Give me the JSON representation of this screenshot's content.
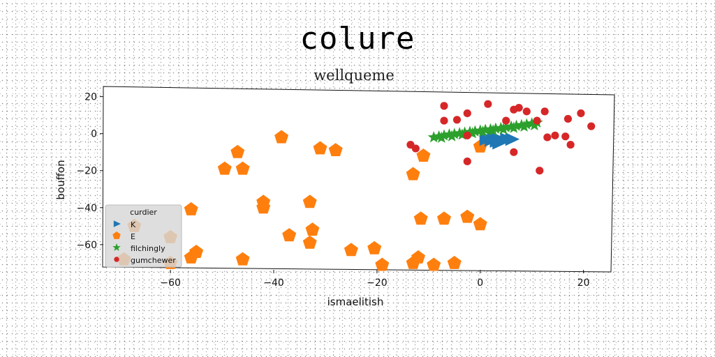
{
  "chart_data": {
    "type": "scatter",
    "title": "colure",
    "subtitle": "wellqueme",
    "xlabel": "ismaelitish",
    "ylabel": "bouffon",
    "xlim": [
      -73,
      26
    ],
    "ylim": [
      -74,
      24
    ],
    "xticks": [
      -60,
      -40,
      -20,
      0,
      20
    ],
    "yticks": [
      20,
      0,
      -20,
      -40,
      -60
    ],
    "grid": false,
    "legend": {
      "title": "curdier",
      "position": "lower-left"
    },
    "series": [
      {
        "name": "K",
        "marker": "triangle-right",
        "color": "#1f77b4",
        "points": [
          [
            1,
            -3
          ],
          [
            2,
            -3.5
          ],
          [
            3,
            -4
          ],
          [
            4,
            -3.5
          ],
          [
            5,
            -3
          ],
          [
            6,
            -3
          ],
          [
            2.5,
            -2
          ],
          [
            3.5,
            -5
          ]
        ]
      },
      {
        "name": "E",
        "marker": "pentagon",
        "color": "#ff7f0e",
        "points": [
          [
            -38.5,
            -2
          ],
          [
            -31,
            -8
          ],
          [
            -28,
            -9
          ],
          [
            -47,
            -10
          ],
          [
            -49.5,
            -19
          ],
          [
            -46,
            -19
          ],
          [
            -42,
            -37
          ],
          [
            -42,
            -40
          ],
          [
            -33,
            -37
          ],
          [
            -56,
            -41
          ],
          [
            -37,
            -55
          ],
          [
            -32.5,
            -52
          ],
          [
            -33,
            -59
          ],
          [
            -67,
            -50
          ],
          [
            -60,
            -56
          ],
          [
            -55,
            -64
          ],
          [
            -56,
            -67
          ],
          [
            -46,
            -68
          ],
          [
            -25,
            -63
          ],
          [
            -20.5,
            -62
          ],
          [
            -19,
            -71
          ],
          [
            -13,
            -70
          ],
          [
            -12,
            -67
          ],
          [
            -9,
            -71
          ],
          [
            -5,
            -70
          ],
          [
            -13,
            -22
          ],
          [
            -11,
            -12
          ],
          [
            -11.5,
            -46
          ],
          [
            -7,
            -46
          ],
          [
            -2.5,
            -45
          ],
          [
            0,
            -49
          ],
          [
            0,
            -7
          ],
          [
            -69,
            -68
          ],
          [
            -60,
            -70
          ]
        ]
      },
      {
        "name": "filchingly",
        "marker": "star",
        "color": "#2ca02c",
        "points": [
          [
            -9,
            -2
          ],
          [
            -8,
            -1.5
          ],
          [
            -7,
            -1
          ],
          [
            -6,
            -0.5
          ],
          [
            -5,
            -0.2
          ],
          [
            -4,
            0.2
          ],
          [
            -3,
            0.5
          ],
          [
            -2,
            0.9
          ],
          [
            -1,
            1.2
          ],
          [
            0,
            1.6
          ],
          [
            1,
            2
          ],
          [
            2,
            2.3
          ],
          [
            3,
            2.7
          ],
          [
            4,
            3
          ],
          [
            5,
            3.5
          ],
          [
            6,
            3.8
          ],
          [
            7,
            4.2
          ],
          [
            8,
            4.6
          ],
          [
            9,
            5
          ],
          [
            10,
            5.5
          ],
          [
            11,
            6
          ],
          [
            -7.5,
            -2.2
          ],
          [
            -5.5,
            -1.4
          ],
          [
            -3.5,
            -0.6
          ],
          [
            -1.5,
            0.2
          ],
          [
            0.5,
            1
          ],
          [
            2.5,
            1.7
          ],
          [
            4.5,
            2.4
          ],
          [
            6.5,
            3.1
          ],
          [
            8.5,
            3.8
          ],
          [
            10.5,
            4.5
          ]
        ]
      },
      {
        "name": "gumchewer",
        "marker": "circle",
        "color": "#d62728",
        "points": [
          [
            -7,
            15
          ],
          [
            -7,
            7
          ],
          [
            -4.5,
            7.5
          ],
          [
            -2.5,
            11
          ],
          [
            1.5,
            16
          ],
          [
            5,
            7
          ],
          [
            6.5,
            13
          ],
          [
            7.5,
            14
          ],
          [
            9,
            12
          ],
          [
            11,
            7
          ],
          [
            12.5,
            12
          ],
          [
            13,
            -2
          ],
          [
            14.5,
            -1
          ],
          [
            16.5,
            -1.5
          ],
          [
            17,
            8
          ],
          [
            17.5,
            -6
          ],
          [
            19.5,
            11
          ],
          [
            21.5,
            4
          ],
          [
            -13.5,
            -6
          ],
          [
            -12.5,
            -8
          ],
          [
            -2.5,
            -1
          ],
          [
            -2.5,
            -15
          ],
          [
            6.5,
            -10
          ],
          [
            11.5,
            -20
          ]
        ]
      }
    ]
  }
}
